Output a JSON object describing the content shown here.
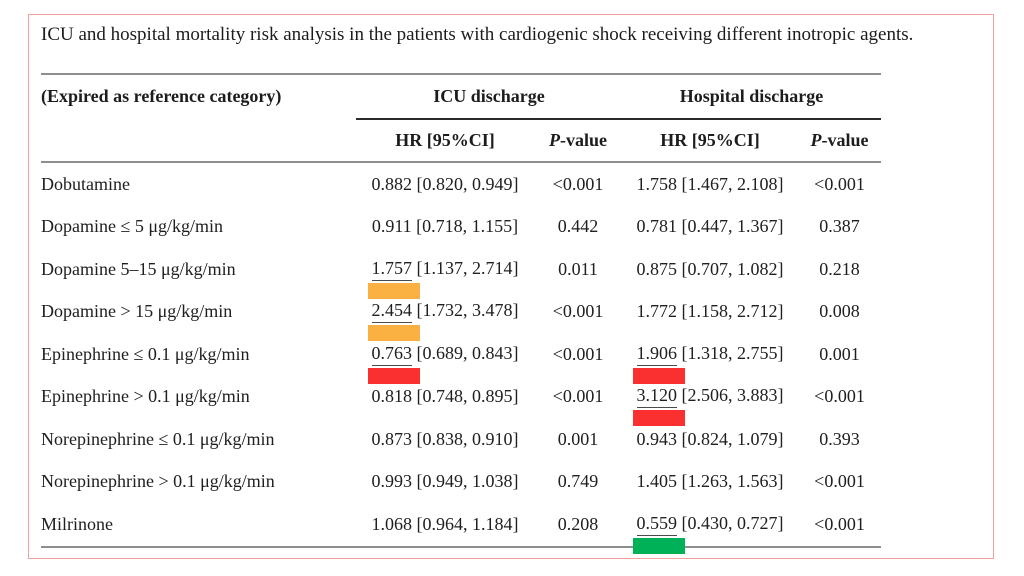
{
  "title": "ICU and hospital mortality risk analysis in the patients with cardiogenic shock receiving different inotropic agents.",
  "table": {
    "ref_header": "(Expired as reference category)",
    "group_headers": [
      "ICU discharge",
      "Hospital discharge"
    ],
    "sub_headers": {
      "hr": "HR [95%CI]",
      "p_italic": "P",
      "p_rest": "-value"
    },
    "rows": [
      {
        "label": "Dobutamine",
        "icu": {
          "hr": "0.882",
          "ci": "[0.820, 0.949]",
          "p": "<0.001",
          "highlight": null
        },
        "hospital": {
          "hr": "1.758",
          "ci": "[1.467, 2.108]",
          "p": "<0.001",
          "highlight": null
        }
      },
      {
        "label": "Dopamine ≤ 5 μg/kg/min",
        "icu": {
          "hr": "0.911",
          "ci": "[0.718, 1.155]",
          "p": "0.442",
          "highlight": null
        },
        "hospital": {
          "hr": "0.781",
          "ci": "[0.447, 1.367]",
          "p": "0.387",
          "highlight": null
        }
      },
      {
        "label": "Dopamine 5–15 μg/kg/min",
        "icu": {
          "hr": "1.757",
          "ci": "[1.137, 2.714]",
          "p": "0.011",
          "highlight": "orange"
        },
        "hospital": {
          "hr": "0.875",
          "ci": "[0.707, 1.082]",
          "p": "0.218",
          "highlight": null
        }
      },
      {
        "label": "Dopamine > 15 μg/kg/min",
        "icu": {
          "hr": "2.454",
          "ci": "[1.732, 3.478]",
          "p": "<0.001",
          "highlight": "orange"
        },
        "hospital": {
          "hr": "1.772",
          "ci": "[1.158, 2.712]",
          "p": "0.008",
          "highlight": null
        }
      },
      {
        "label": "Epinephrine ≤ 0.1 μg/kg/min",
        "icu": {
          "hr": "0.763",
          "ci": "[0.689, 0.843]",
          "p": "<0.001",
          "highlight": "red"
        },
        "hospital": {
          "hr": "1.906",
          "ci": "[1.318, 2.755]",
          "p": "0.001",
          "highlight": "red"
        }
      },
      {
        "label": "Epinephrine > 0.1 μg/kg/min",
        "icu": {
          "hr": "0.818",
          "ci": "[0.748, 0.895]",
          "p": "<0.001",
          "highlight": null
        },
        "hospital": {
          "hr": "3.120",
          "ci": "[2.506, 3.883]",
          "p": "<0.001",
          "highlight": "red"
        }
      },
      {
        "label": "Norepinephrine ≤ 0.1 μg/kg/min",
        "icu": {
          "hr": "0.873",
          "ci": "[0.838, 0.910]",
          "p": "0.001",
          "highlight": null
        },
        "hospital": {
          "hr": "0.943",
          "ci": "[0.824, 1.079]",
          "p": "0.393",
          "highlight": null
        }
      },
      {
        "label": "Norepinephrine > 0.1 μg/kg/min",
        "icu": {
          "hr": "0.993",
          "ci": "[0.949, 1.038]",
          "p": "0.749",
          "highlight": null
        },
        "hospital": {
          "hr": "1.405",
          "ci": "[1.263, 1.563]",
          "p": "<0.001",
          "highlight": null
        }
      },
      {
        "label": "Milrinone",
        "icu": {
          "hr": "1.068",
          "ci": "[0.964, 1.184]",
          "p": "0.208",
          "highlight": null
        },
        "hospital": {
          "hr": "0.559",
          "ci": "[0.430, 0.727]",
          "p": "<0.001",
          "highlight": "green"
        }
      }
    ]
  },
  "highlight_colors": {
    "orange": "#fbb042",
    "red": "#fa2f2f",
    "green": "#00b158"
  },
  "frame_border_color": "#f2a3a0"
}
